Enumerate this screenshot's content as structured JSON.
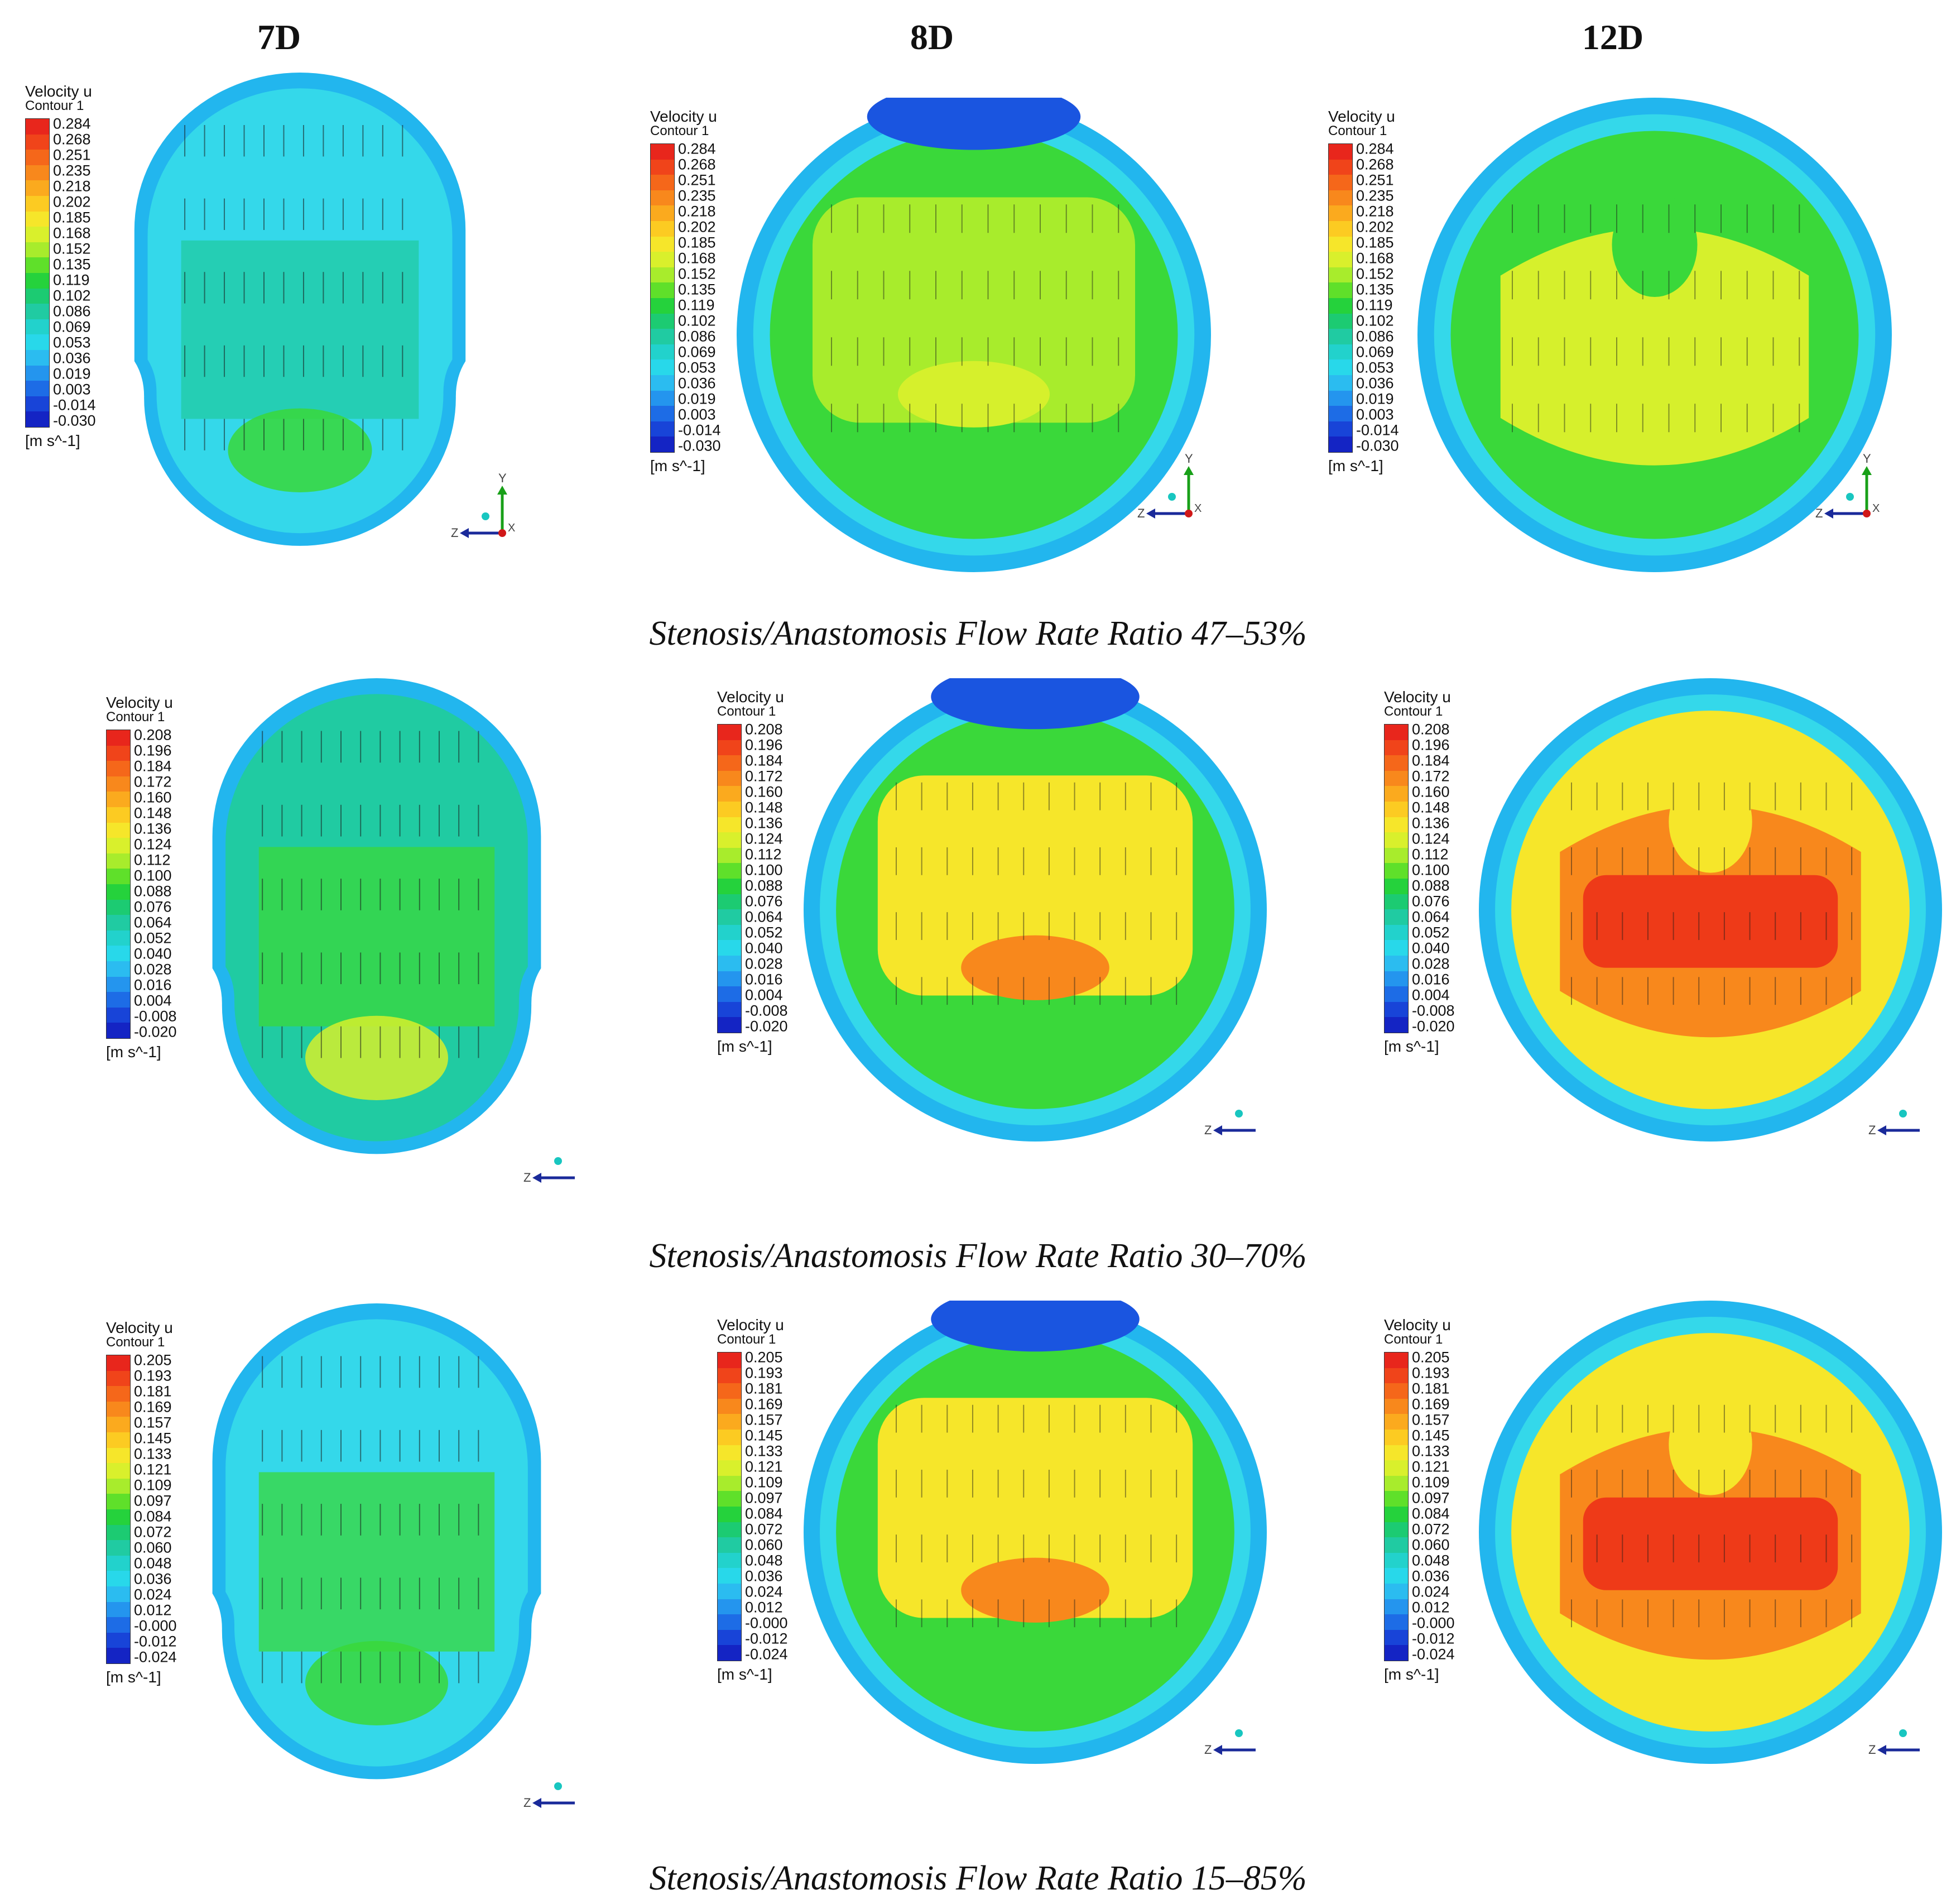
{
  "columns": [
    "7D",
    "8D",
    "12D"
  ],
  "legend": {
    "title": "Velocity u",
    "subtitle": "Contour 1",
    "unit": "[m s^-1]"
  },
  "rows": [
    {
      "caption": "Stenosis/Anastomosis Flow Rate Ratio 47–53%",
      "scale": [
        "0.284",
        "0.268",
        "0.251",
        "0.235",
        "0.218",
        "0.202",
        "0.185",
        "0.168",
        "0.152",
        "0.135",
        "0.119",
        "0.102",
        "0.086",
        "0.069",
        "0.053",
        "0.036",
        "0.019",
        "0.003",
        "-0.014",
        "-0.030"
      ]
    },
    {
      "caption": "Stenosis/Anastomosis Flow Rate Ratio 30–70%",
      "scale": [
        "0.208",
        "0.196",
        "0.184",
        "0.172",
        "0.160",
        "0.148",
        "0.136",
        "0.124",
        "0.112",
        "0.100",
        "0.088",
        "0.076",
        "0.064",
        "0.052",
        "0.040",
        "0.028",
        "0.016",
        "0.004",
        "-0.008",
        "-0.020"
      ]
    },
    {
      "caption": "Stenosis/Anastomosis Flow Rate Ratio 15–85%",
      "scale": [
        "0.205",
        "0.193",
        "0.181",
        "0.169",
        "0.157",
        "0.145",
        "0.133",
        "0.121",
        "0.109",
        "0.097",
        "0.084",
        "0.072",
        "0.060",
        "0.048",
        "0.036",
        "0.024",
        "0.012",
        "-0.000",
        "-0.012",
        "-0.024"
      ]
    }
  ],
  "axis_labels": {
    "y": "Y",
    "z": "Z",
    "x": "X"
  },
  "colormap": [
    "#e8261c",
    "#f0441a",
    "#f5671a",
    "#f8881c",
    "#fbaa1e",
    "#fccb22",
    "#f6e62a",
    "#d9f02c",
    "#a8ec2c",
    "#5fe02a",
    "#25d23c",
    "#1ccb72",
    "#20cba2",
    "#22d2cc",
    "#28d8ea",
    "#2bbcf0",
    "#2495ee",
    "#1d6ce6",
    "#1844d8",
    "#1424c4"
  ],
  "colors": {
    "blue_edge": "#22b6ee",
    "cyan": "#34d8ea",
    "teal": "#20cba2",
    "green": "#3ad83a",
    "lime": "#a8ec2c",
    "yellow_green": "#d6f02c",
    "yellow": "#f6e62a",
    "orange": "#f8881c",
    "red": "#ee3a18",
    "dark_blue": "#1a55e0"
  }
}
